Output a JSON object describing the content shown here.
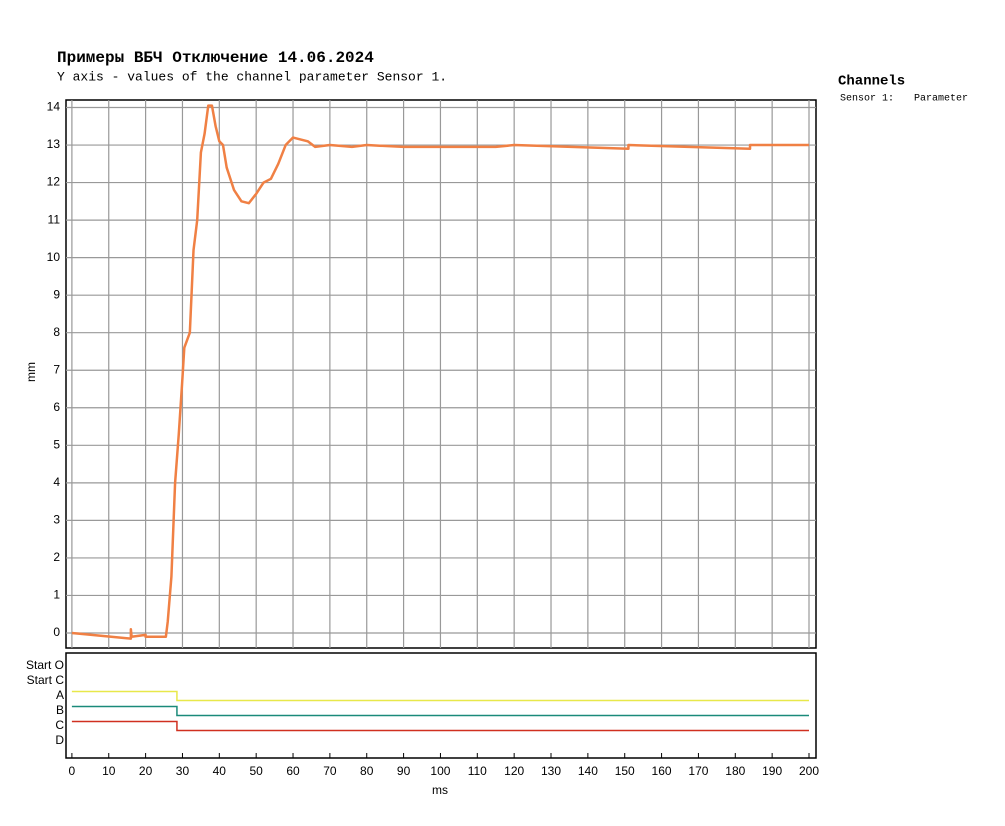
{
  "chart_data": [
    {
      "type": "line",
      "title": "Примеры ВБЧ Отключение 14.06.2024",
      "subtitle": "Y axis - values of the channel parameter Sensor 1.",
      "y_label": "mm",
      "legend_title": "Channels",
      "xlim": [
        -1.6,
        201.9
      ],
      "ylim": [
        -0.4,
        14.2
      ],
      "xticks": [
        0,
        10,
        20,
        30,
        40,
        50,
        60,
        70,
        80,
        90,
        100,
        110,
        120,
        130,
        140,
        150,
        160,
        170,
        180,
        190,
        200
      ],
      "yticks": [
        0,
        1,
        2,
        3,
        4,
        5,
        6,
        7,
        8,
        9,
        10,
        11,
        12,
        13,
        14
      ],
      "grid": true,
      "series": [
        {
          "name": "Sensor 1:",
          "parameter": "Parameter",
          "color": "#f08044",
          "x": [
            0,
            16,
            16,
            16.2,
            20,
            20,
            25.5,
            26,
            27,
            28,
            29,
            30,
            30.5,
            32,
            33,
            34,
            35,
            36,
            37,
            38,
            39,
            40,
            41,
            42,
            44,
            46,
            48,
            50,
            52,
            54,
            56,
            58,
            60,
            62,
            64,
            66,
            70,
            76,
            80,
            90,
            100,
            110,
            115,
            120,
            151,
            151,
            184,
            184,
            200
          ],
          "values": [
            0,
            -0.15,
            0.1,
            -0.1,
            -0.05,
            -0.1,
            -0.1,
            0.3,
            1.5,
            4.0,
            5.3,
            6.8,
            7.6,
            8,
            10.2,
            11,
            12.8,
            13.3,
            14.05,
            14.05,
            13.5,
            13.1,
            13.0,
            12.4,
            11.8,
            11.5,
            11.45,
            11.7,
            12.0,
            12.1,
            12.5,
            13.0,
            13.2,
            13.15,
            13.1,
            12.95,
            13.0,
            12.95,
            13.0,
            12.95,
            12.95,
            12.95,
            12.95,
            13.0,
            12.9,
            13.0,
            12.9,
            13.0,
            13.0
          ]
        }
      ]
    },
    {
      "type": "digital",
      "x_label": "ms",
      "xlim": [
        -1.6,
        201.9
      ],
      "xticks": [
        0,
        10,
        20,
        30,
        40,
        50,
        60,
        70,
        80,
        90,
        100,
        110,
        120,
        130,
        140,
        150,
        160,
        170,
        180,
        190,
        200
      ],
      "channels": [
        {
          "name": "Start O"
        },
        {
          "name": "Start C"
        },
        {
          "name": "A",
          "color": "#e8e84a",
          "x": [
            0,
            28.5,
            200
          ],
          "values": [
            1,
            0,
            0
          ]
        },
        {
          "name": "B",
          "color": "#1a8a7a",
          "x": [
            0,
            28.5,
            200
          ],
          "values": [
            1,
            0,
            0
          ]
        },
        {
          "name": "C",
          "color": "#d03020",
          "x": [
            0,
            28.5,
            200
          ],
          "values": [
            1,
            0,
            0
          ]
        },
        {
          "name": "D"
        }
      ]
    }
  ]
}
